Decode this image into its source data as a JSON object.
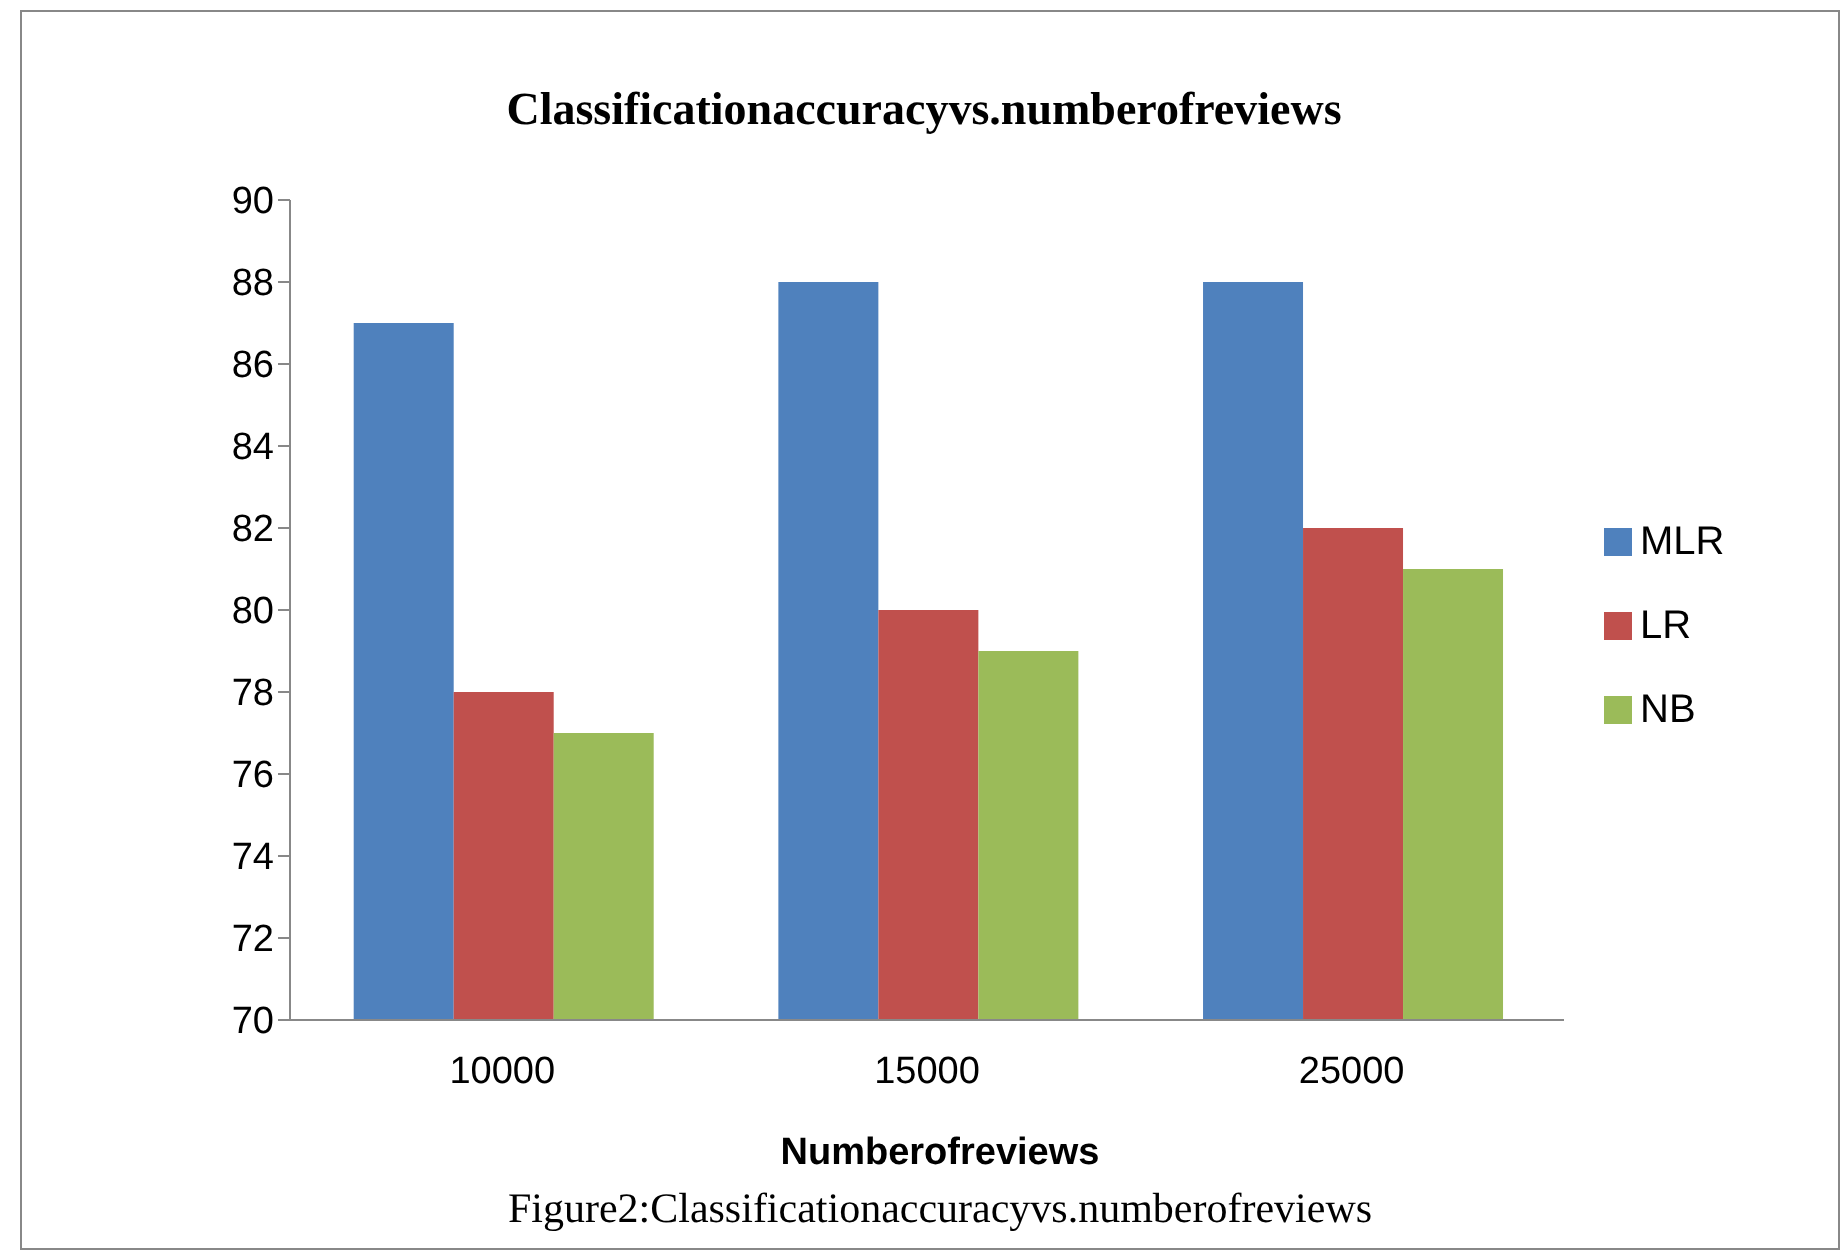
{
  "chart_data": {
    "type": "bar",
    "title": "Classificationaccuracyvs.numberofreviews",
    "xlabel": "Numberofreviews",
    "categories": [
      "10000",
      "15000",
      "25000"
    ],
    "series": [
      {
        "name": "MLR",
        "color": "#4f81bd",
        "values": [
          87,
          88,
          88
        ]
      },
      {
        "name": "LR",
        "color": "#c0504d",
        "values": [
          78,
          80,
          82
        ]
      },
      {
        "name": "NB",
        "color": "#9bbb59",
        "values": [
          77,
          79,
          81
        ]
      }
    ],
    "ylim": [
      70,
      90
    ],
    "yticks": [
      70,
      72,
      74,
      76,
      78,
      80,
      82,
      84,
      86,
      88,
      90
    ],
    "grid": false,
    "legend": "right",
    "annotations": [
      "Figure2:Classificationaccuracyvs.numberofreviews"
    ]
  }
}
